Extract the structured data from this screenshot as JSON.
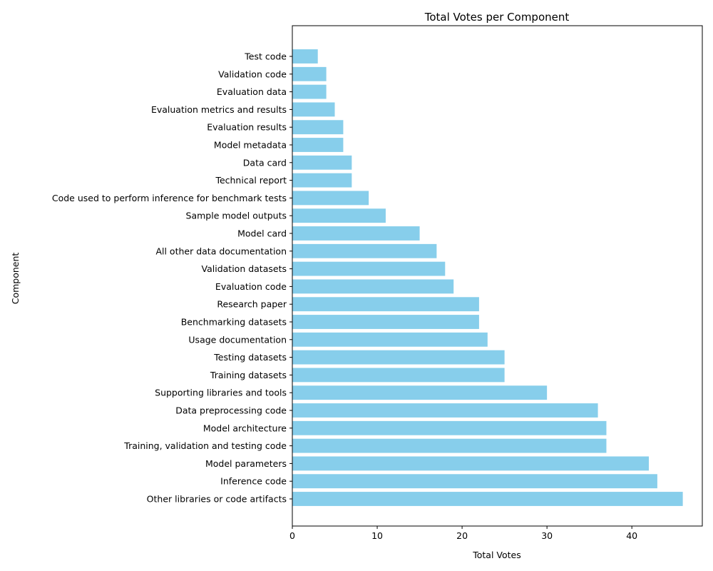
{
  "chart_data": {
    "type": "bar",
    "orientation": "horizontal",
    "title": "Total Votes per Component",
    "xlabel": "Total Votes",
    "ylabel": "Component",
    "xlim": [
      0,
      48.3
    ],
    "xticks": [
      0,
      10,
      20,
      30,
      40
    ],
    "grid": false,
    "bar_color": "#87ceeb",
    "categories": [
      "Other libraries or code artifacts",
      "Inference code",
      "Model parameters",
      "Training, validation and testing code",
      "Model architecture",
      "Data preprocessing code",
      "Supporting libraries and tools",
      "Training datasets",
      "Testing datasets",
      "Usage documentation",
      "Benchmarking datasets",
      "Research paper",
      "Evaluation code",
      "Validation datasets",
      "All other data documentation",
      "Model card",
      "Sample model outputs",
      "Code used to perform inference for benchmark tests",
      "Technical report",
      "Data card",
      "Model metadata ",
      "Evaluation results",
      "Evaluation metrics and results",
      "Evaluation data",
      "Validation code",
      "Test code"
    ],
    "values": [
      46,
      43,
      42,
      37,
      37,
      36,
      30,
      25,
      25,
      23,
      22,
      22,
      19,
      18,
      17,
      15,
      11,
      9,
      7,
      7,
      6,
      6,
      5,
      4,
      4,
      3
    ]
  }
}
